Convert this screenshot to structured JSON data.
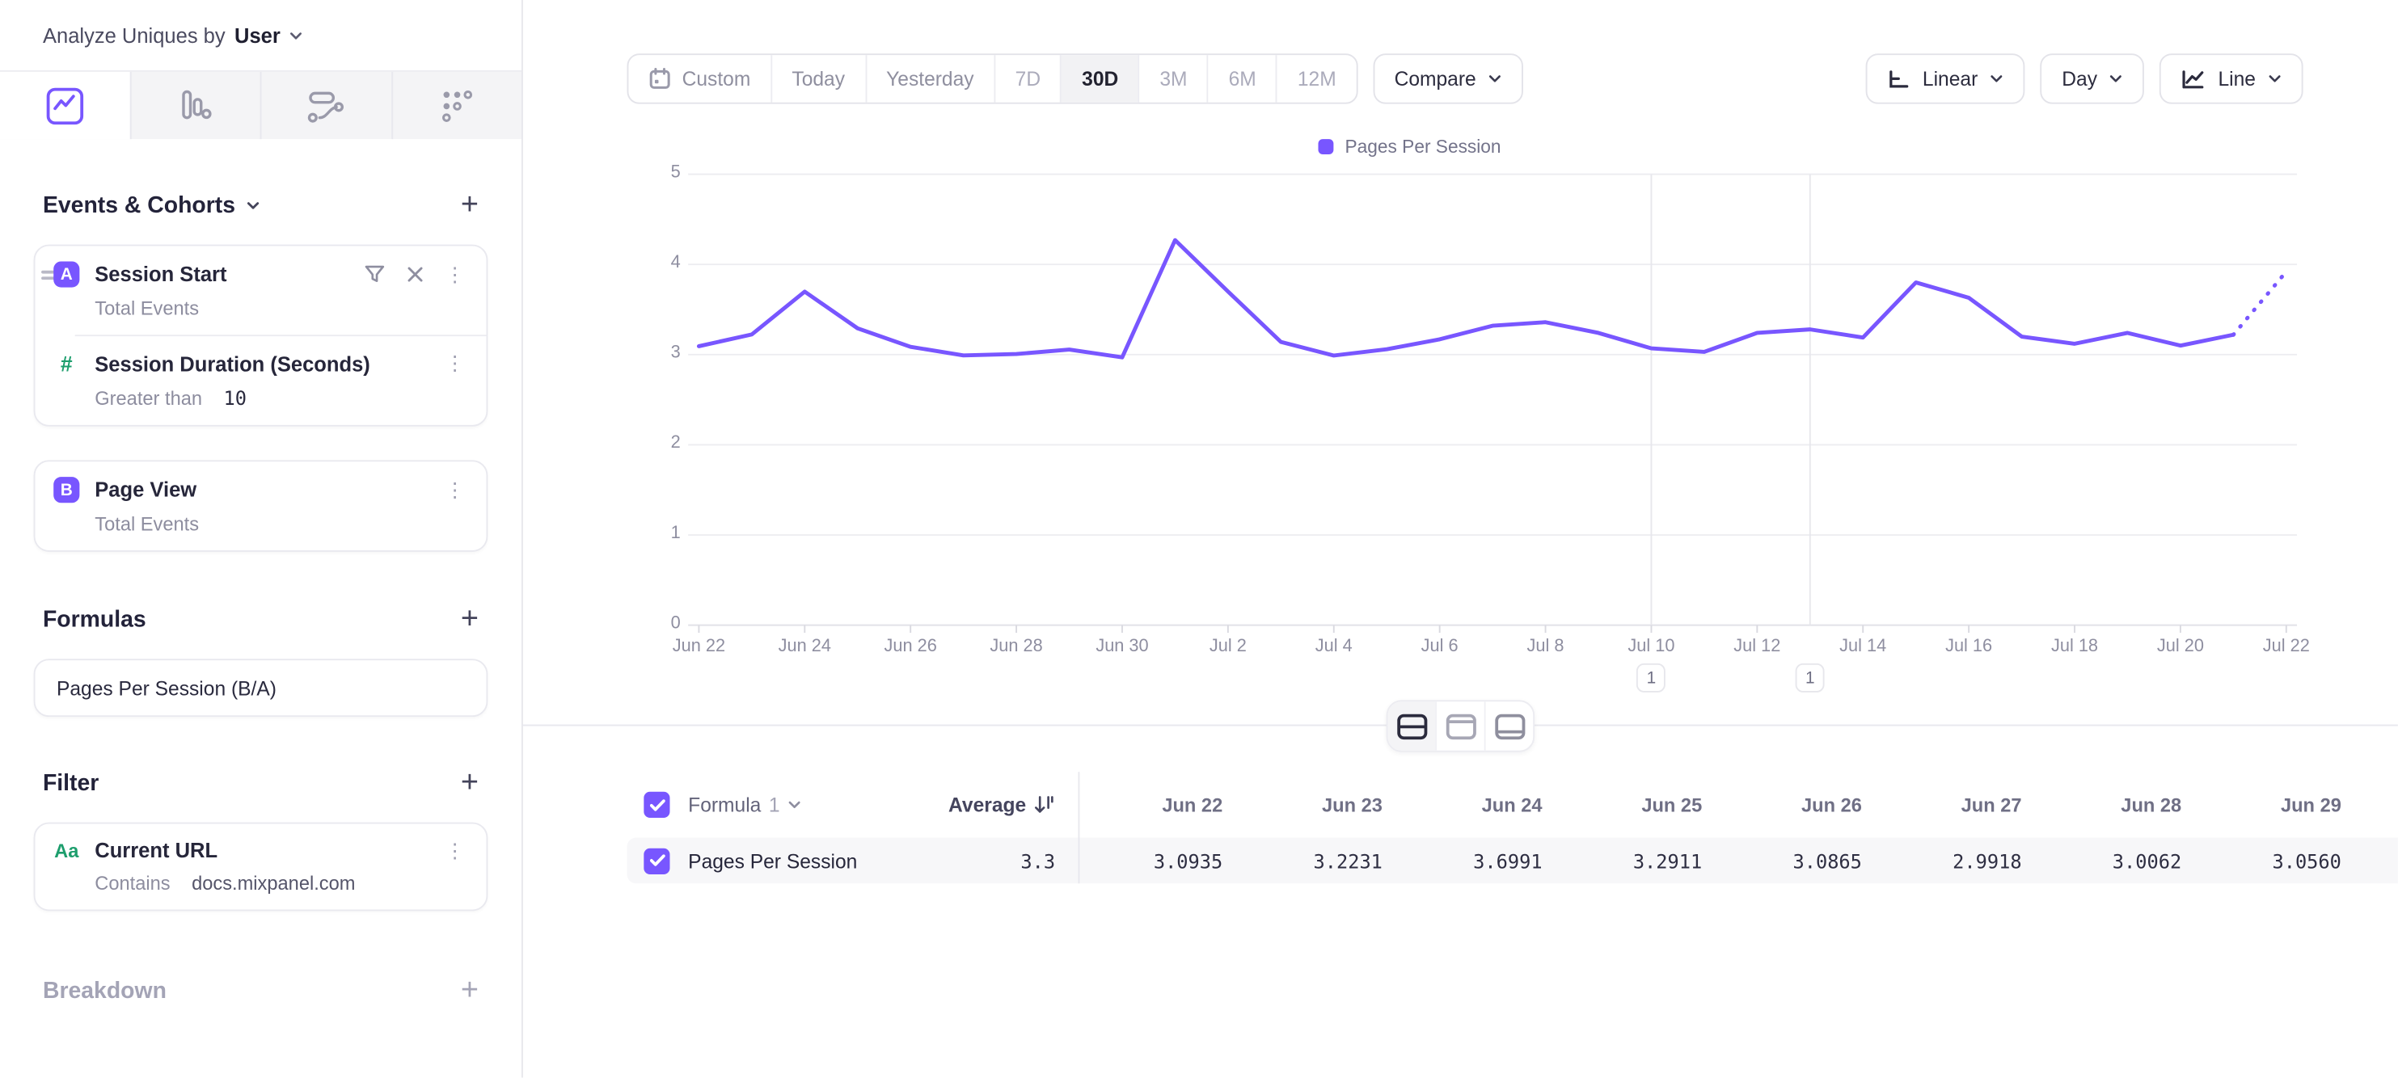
{
  "accent_color": "#7856ff",
  "green_color": "#1d9e6d",
  "topbar": {
    "analyze_label": "Analyze Uniques by",
    "analyze_value": "User"
  },
  "sidebar": {
    "tabs": [
      {
        "icon": "insights-line-chart-icon",
        "active": true
      },
      {
        "icon": "bar-chart-icon",
        "active": false
      },
      {
        "icon": "flows-icon",
        "active": false
      },
      {
        "icon": "metrics-dots-icon",
        "active": false
      }
    ],
    "events_cohorts": {
      "title": "Events & Cohorts",
      "items": [
        {
          "letter": "A",
          "name": "Session Start",
          "metric": "Total Events",
          "property": {
            "name": "Session Duration (Seconds)",
            "operator": "Greater than",
            "value": "10"
          }
        },
        {
          "letter": "B",
          "name": "Page View",
          "metric": "Total Events"
        }
      ]
    },
    "formulas": {
      "title": "Formulas",
      "items": [
        {
          "name": "Pages Per Session (B/A)"
        }
      ]
    },
    "filter": {
      "title": "Filter",
      "items": [
        {
          "icon": "Aa",
          "name": "Current URL",
          "operator": "Contains",
          "value": "docs.mixpanel.com"
        }
      ]
    },
    "breakdown": {
      "title": "Breakdown"
    }
  },
  "toolbar": {
    "date_ranges": [
      "Custom",
      "Today",
      "Yesterday",
      "7D",
      "30D",
      "3M",
      "6M",
      "12M"
    ],
    "selected_range": "30D",
    "muted_ranges": [
      "7D",
      "3M",
      "6M",
      "12M"
    ],
    "compare_label": "Compare",
    "scale_label": "Linear",
    "interval_label": "Day",
    "chart_type_label": "Line"
  },
  "chart_data": {
    "type": "line",
    "title": "",
    "legend": [
      "Pages Per Session"
    ],
    "legend_position": "top-center",
    "grid": true,
    "ylim": [
      0,
      5
    ],
    "yticks": [
      0,
      1,
      2,
      3,
      4,
      5
    ],
    "x_tick_every": 2,
    "x": [
      "Jun 22",
      "Jun 23",
      "Jun 24",
      "Jun 25",
      "Jun 26",
      "Jun 27",
      "Jun 28",
      "Jun 29",
      "Jun 30",
      "Jul 1",
      "Jul 2",
      "Jul 3",
      "Jul 4",
      "Jul 5",
      "Jul 6",
      "Jul 7",
      "Jul 8",
      "Jul 9",
      "Jul 10",
      "Jul 11",
      "Jul 12",
      "Jul 13",
      "Jul 14",
      "Jul 15",
      "Jul 16",
      "Jul 17",
      "Jul 18",
      "Jul 19",
      "Jul 20",
      "Jul 21",
      "Jul 22"
    ],
    "series": [
      {
        "name": "Pages Per Session",
        "color": "#7856ff",
        "values": [
          3.0935,
          3.2231,
          3.6991,
          3.2911,
          3.0865,
          2.9918,
          3.0062,
          3.056,
          2.97,
          4.27,
          3.7,
          3.14,
          2.99,
          3.06,
          3.17,
          3.32,
          3.36,
          3.24,
          3.07,
          3.03,
          3.24,
          3.28,
          3.19,
          3.8,
          3.63,
          3.2,
          3.12,
          3.24,
          3.1,
          3.22,
          3.92
        ],
        "last_segment_dashed": true
      }
    ],
    "annotations": [
      {
        "label": "1",
        "x": "Jul 10",
        "index": 18
      },
      {
        "label": "1",
        "x": "Jul 13",
        "index": 21
      }
    ]
  },
  "table": {
    "formula_label": "Formula",
    "formula_number": "1",
    "average_header": "Average",
    "columns": [
      "Jun 22",
      "Jun 23",
      "Jun 24",
      "Jun 25",
      "Jun 26",
      "Jun 27",
      "Jun 28",
      "Jun 29"
    ],
    "rows": [
      {
        "name": "Pages Per Session",
        "checked": true,
        "average": "3.3",
        "values": [
          "3.0935",
          "3.2231",
          "3.6991",
          "3.2911",
          "3.0865",
          "2.9918",
          "3.0062",
          "3.0560"
        ]
      }
    ]
  }
}
